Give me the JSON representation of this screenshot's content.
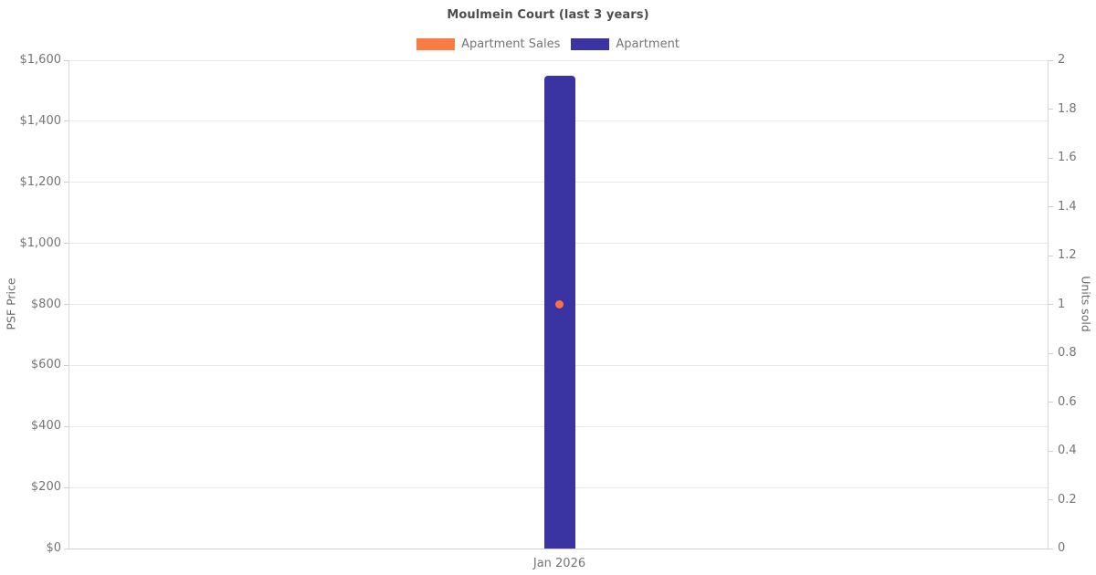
{
  "chart_data": {
    "type": "bar",
    "title": "Moulmein Court (last 3 years)",
    "categories": [
      "Jan 2026"
    ],
    "series": [
      {
        "name": "Apartment Sales",
        "type": "scatter",
        "axis": "right",
        "values": [
          1
        ],
        "color": "#f97c45",
        "point_color": "#f9704a"
      },
      {
        "name": "Apartment",
        "type": "bar",
        "axis": "left",
        "values": [
          1550
        ],
        "color": "#3a34a3"
      }
    ],
    "left_axis": {
      "label": "PSF Price",
      "min": 0,
      "max": 1600,
      "tick_interval": 200,
      "tick_labels": [
        "$0",
        "$200",
        "$400",
        "$600",
        "$800",
        "$1,000",
        "$1,200",
        "$1,400",
        "$1,600"
      ]
    },
    "right_axis": {
      "label": "Units sold",
      "min": 0,
      "max": 2,
      "tick_interval": 0.2,
      "tick_labels": [
        "0",
        "0.2",
        "0.4",
        "0.6",
        "0.8",
        "1",
        "1.2",
        "1.4",
        "1.6",
        "1.8",
        "2"
      ]
    },
    "grid": true,
    "legend_position": "top",
    "colors": {
      "title_text": "#4d4d4d",
      "tick_text": "#757575",
      "gridline": "#e8e8e8"
    }
  }
}
